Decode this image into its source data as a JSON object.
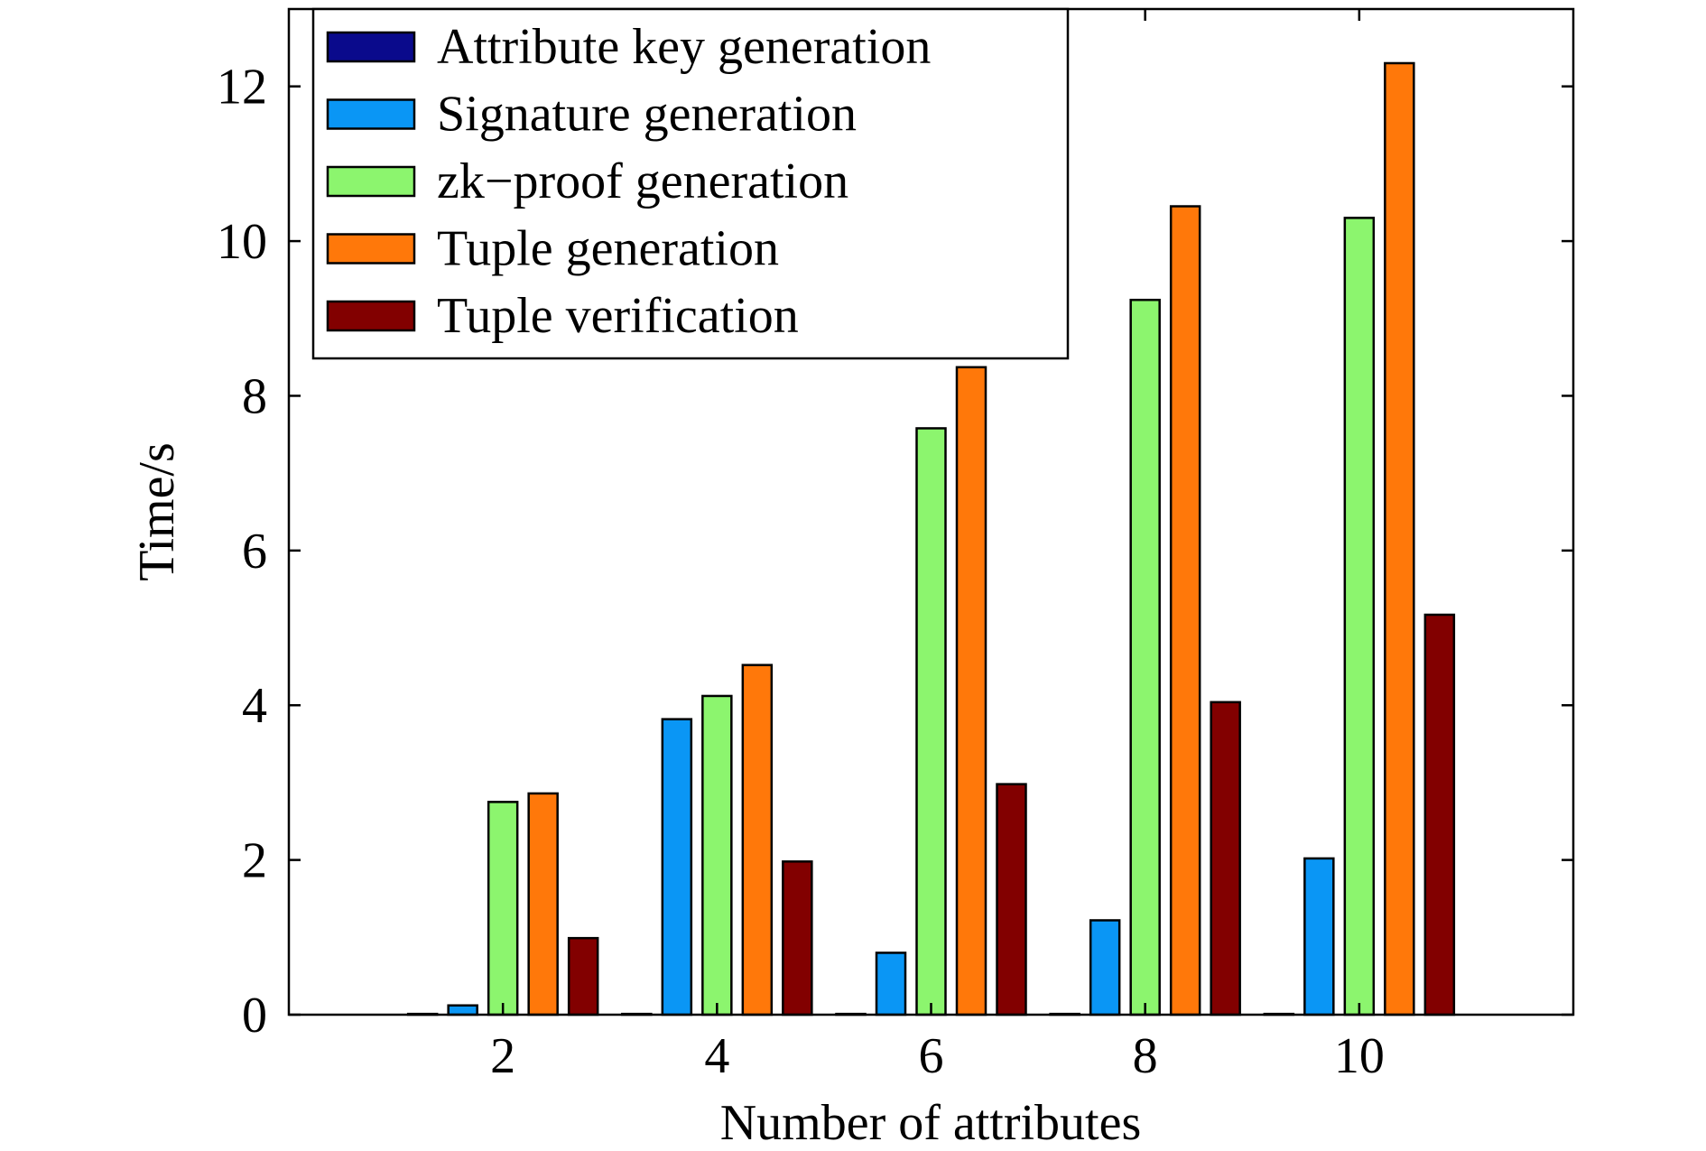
{
  "chart_data": {
    "type": "bar",
    "title": "",
    "xlabel": "Number of attributes",
    "ylabel": "Time/s",
    "categories": [
      "2",
      "4",
      "6",
      "8",
      "10"
    ],
    "ylim": [
      0,
      13
    ],
    "yticks": [
      0,
      2,
      4,
      6,
      8,
      10,
      12
    ],
    "grid": false,
    "legend_position": "top-left",
    "series": [
      {
        "name": "Attribute key generation",
        "color": "#0a0a8c",
        "values": [
          0.01,
          0.01,
          0.01,
          0.01,
          0.01
        ]
      },
      {
        "name": "Signature generation",
        "color": "#0a96f5",
        "values": [
          0.12,
          3.82,
          0.8,
          1.22,
          2.02
        ]
      },
      {
        "name": "zk−proof generation",
        "color": "#8cf56e",
        "values": [
          2.75,
          4.12,
          7.58,
          9.24,
          10.3
        ]
      },
      {
        "name": "Tuple generation",
        "color": "#ff780a",
        "values": [
          2.86,
          4.52,
          8.37,
          10.45,
          12.3
        ]
      },
      {
        "name": "Tuple verification",
        "color": "#820000",
        "values": [
          0.99,
          1.98,
          2.98,
          4.04,
          5.17
        ]
      }
    ]
  }
}
